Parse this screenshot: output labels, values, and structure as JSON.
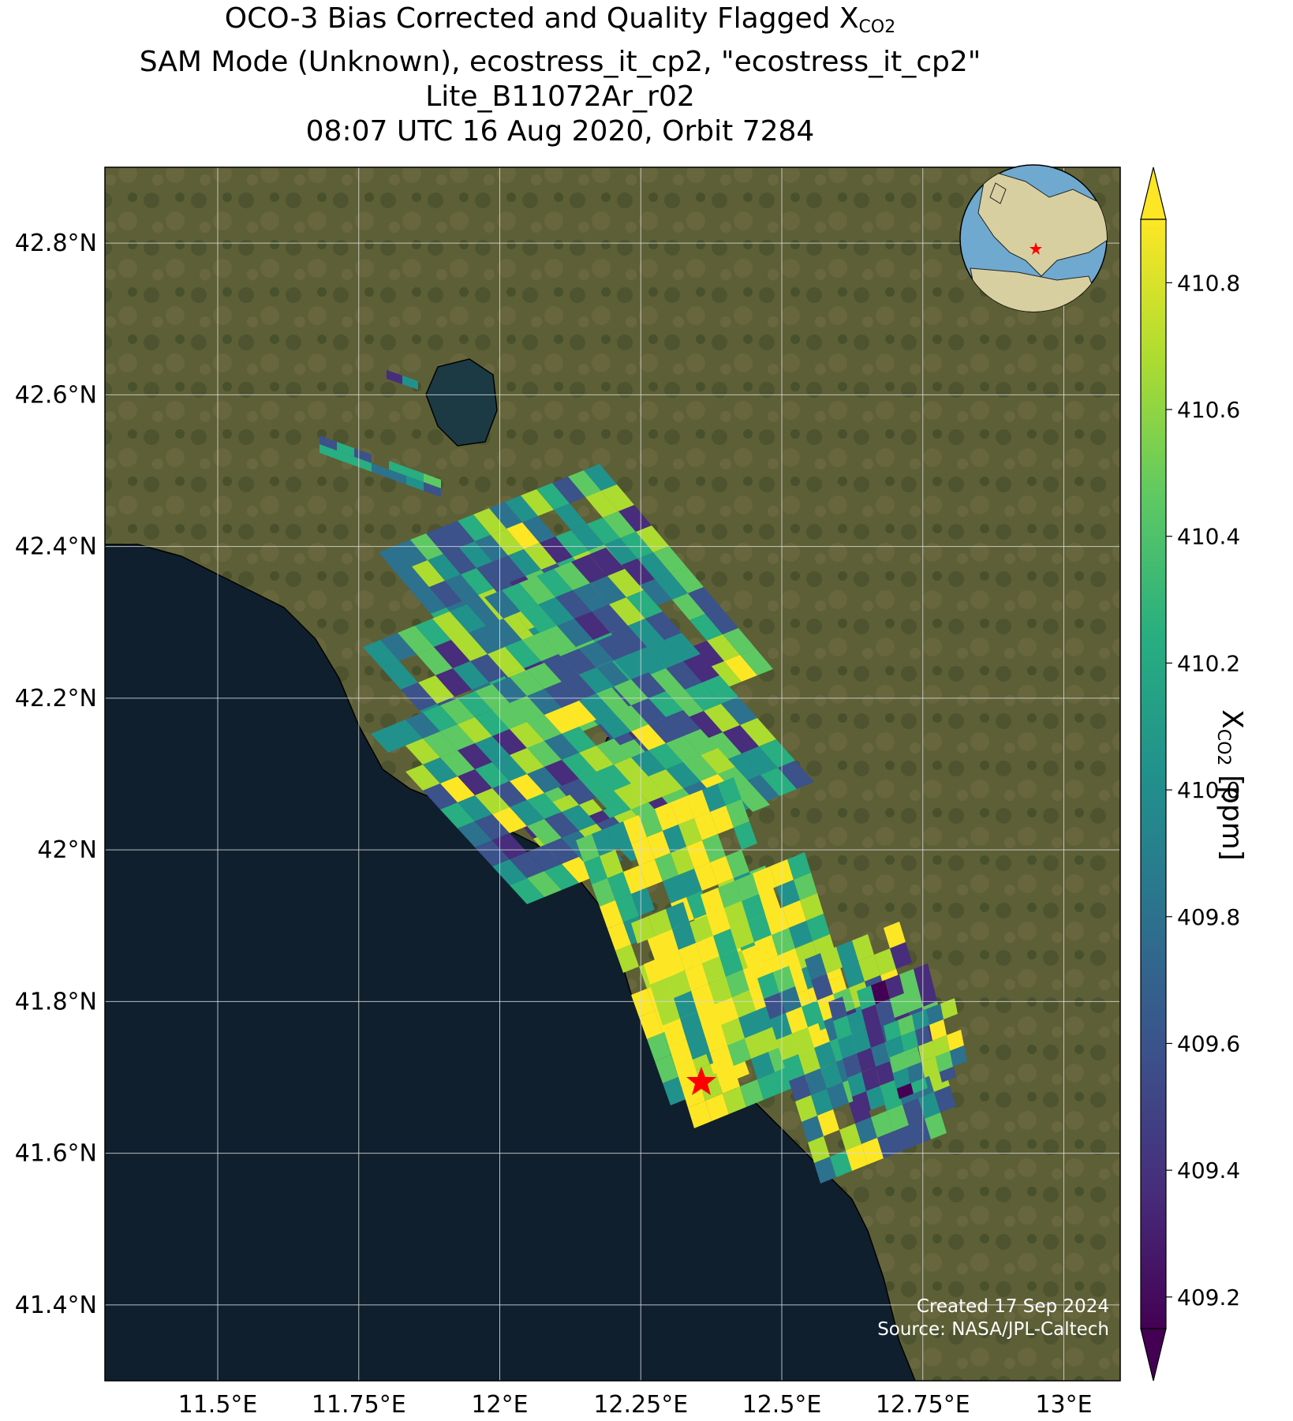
{
  "title": {
    "line1_prefix": "OCO-3 Bias Corrected and Quality Flagged X",
    "line1_sub": "CO2",
    "line2": "SAM Mode (Unknown), ecostress_it_cp2, \"ecostress_it_cp2\"",
    "line3": "Lite_B11072Ar_r02",
    "line4": "08:07 UTC 16 Aug 2020, Orbit 7284"
  },
  "credit": {
    "created": "Created 17 Sep 2024",
    "source": "Source: NASA/JPL-Caltech"
  },
  "colorbar": {
    "label_prefix": "X",
    "label_sub": "CO2",
    "label_suffix": " [ppm]",
    "ticks": [
      "409.2",
      "409.4",
      "409.6",
      "409.8",
      "410.0",
      "410.2",
      "410.4",
      "410.6",
      "410.8"
    ],
    "range": [
      409.15,
      410.9
    ],
    "colormap": "viridis",
    "extend": "both"
  },
  "map": {
    "lon_ticks": [
      "11.5°E",
      "11.75°E",
      "12°E",
      "12.25°E",
      "12.5°E",
      "12.75°E",
      "13°E"
    ],
    "lat_ticks": [
      "42.8°N",
      "42.6°N",
      "42.4°N",
      "42.2°N",
      "42°N",
      "41.8°N",
      "41.6°N",
      "41.4°N"
    ],
    "lon_range": [
      11.3,
      13.1
    ],
    "lat_range": [
      41.3,
      42.9
    ],
    "target_site": {
      "lon": 12.35,
      "lat": 41.7,
      "marker": "red-star"
    },
    "colors": {
      "sea": "#0f1f2e",
      "land": "#5b5c34",
      "grid": "#d9d9d9",
      "marker": "#ff0000"
    }
  }
}
